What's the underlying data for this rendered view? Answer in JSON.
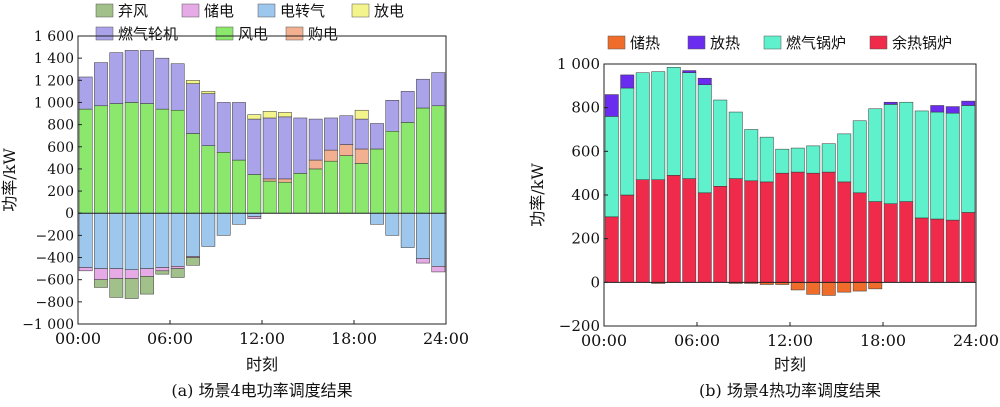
{
  "chart_data": [
    {
      "type": "bar",
      "stacked": true,
      "caption": "(a) 场景4电功率调度结果",
      "xlabel": "时刻",
      "ylabel": "功率/kW",
      "x_ticks": [
        "00:00",
        "06:00",
        "12:00",
        "18:00",
        "24:00"
      ],
      "y_ticks": [
        "1 600",
        "1 400",
        "1 200",
        "1 000",
        "800",
        "600",
        "400",
        "200",
        "0",
        "−200",
        "−400",
        "−600",
        "−800",
        "−1 000"
      ],
      "ylim": [
        -1000,
        1600
      ],
      "hours": [
        0,
        1,
        2,
        3,
        4,
        5,
        6,
        7,
        8,
        9,
        10,
        11,
        12,
        13,
        14,
        15,
        16,
        17,
        18,
        19,
        20,
        21,
        22,
        23
      ],
      "legend": [
        "弃风",
        "储电",
        "电转气",
        "放电",
        "燃气轮机",
        "风电",
        "购电"
      ],
      "series": [
        {
          "name": "风电",
          "color": "#8ce86d",
          "values": [
            940,
            970,
            990,
            1000,
            990,
            940,
            930,
            720,
            610,
            550,
            480,
            350,
            290,
            280,
            360,
            400,
            470,
            520,
            450,
            580,
            740,
            820,
            950,
            970
          ]
        },
        {
          "name": "购电",
          "color": "#f2b090",
          "values": [
            0,
            0,
            0,
            0,
            0,
            0,
            0,
            0,
            0,
            0,
            0,
            0,
            20,
            30,
            0,
            80,
            100,
            100,
            130,
            0,
            0,
            0,
            0,
            0
          ]
        },
        {
          "name": "燃气轮机",
          "color": "#aba3ea",
          "values": [
            290,
            390,
            460,
            470,
            480,
            460,
            420,
            450,
            470,
            450,
            520,
            500,
            550,
            560,
            500,
            370,
            290,
            260,
            270,
            230,
            280,
            280,
            260,
            300
          ]
        },
        {
          "name": "放电",
          "color": "#f3f58c",
          "values": [
            0,
            0,
            0,
            0,
            0,
            0,
            0,
            30,
            20,
            0,
            0,
            40,
            60,
            40,
            0,
            0,
            0,
            0,
            80,
            0,
            0,
            0,
            0,
            0
          ]
        },
        {
          "name": "电转气",
          "color": "#9ec7ee",
          "values": [
            -490,
            -500,
            -500,
            -510,
            -500,
            -490,
            -480,
            -390,
            -300,
            -200,
            -100,
            -30,
            0,
            0,
            0,
            0,
            0,
            0,
            0,
            -100,
            -200,
            -310,
            -410,
            -480
          ]
        },
        {
          "name": "储电",
          "color": "#e6aae6",
          "values": [
            -30,
            -100,
            -90,
            -80,
            -70,
            -30,
            -20,
            -10,
            0,
            0,
            0,
            -20,
            0,
            0,
            0,
            0,
            0,
            0,
            0,
            0,
            0,
            0,
            -40,
            -50
          ]
        },
        {
          "name": "弃风",
          "color": "#a2c08a",
          "values": [
            0,
            -70,
            -170,
            -180,
            -160,
            -30,
            -80,
            -70,
            0,
            0,
            0,
            0,
            0,
            0,
            0,
            0,
            0,
            0,
            0,
            0,
            0,
            0,
            0,
            0
          ]
        }
      ]
    },
    {
      "type": "bar",
      "stacked": true,
      "caption": "(b) 场景4热功率调度结果",
      "xlabel": "时刻",
      "ylabel": "功率/kW",
      "x_ticks": [
        "00:00",
        "06:00",
        "12:00",
        "18:00",
        "24:00"
      ],
      "y_ticks": [
        "1 000",
        "800",
        "600",
        "400",
        "200",
        "0",
        "−200"
      ],
      "ylim": [
        -200,
        1000
      ],
      "hours": [
        0,
        1,
        2,
        3,
        4,
        5,
        6,
        7,
        8,
        9,
        10,
        11,
        12,
        13,
        14,
        15,
        16,
        17,
        18,
        19,
        20,
        21,
        22,
        23
      ],
      "legend": [
        "储热",
        "放热",
        "燃气锅炉",
        "余热锅炉"
      ],
      "series": [
        {
          "name": "余热锅炉",
          "color": "#ef2a4a",
          "values": [
            300,
            400,
            470,
            470,
            490,
            475,
            410,
            440,
            475,
            465,
            460,
            500,
            505,
            500,
            505,
            460,
            410,
            370,
            360,
            370,
            295,
            290,
            285,
            320
          ]
        },
        {
          "name": "燃气锅炉",
          "color": "#5ff0cc",
          "values": [
            460,
            490,
            490,
            495,
            495,
            485,
            495,
            395,
            305,
            235,
            205,
            110,
            110,
            125,
            130,
            220,
            330,
            425,
            455,
            455,
            490,
            490,
            490,
            490
          ]
        },
        {
          "name": "放热",
          "color": "#6a2df0",
          "values": [
            100,
            60,
            0,
            0,
            0,
            10,
            30,
            0,
            0,
            0,
            0,
            0,
            0,
            0,
            0,
            0,
            0,
            0,
            10,
            0,
            0,
            30,
            30,
            20
          ]
        },
        {
          "name": "储热",
          "color": "#f06c2a",
          "values": [
            0,
            0,
            0,
            -5,
            0,
            0,
            0,
            0,
            -5,
            -5,
            -10,
            -10,
            -35,
            -55,
            -60,
            -45,
            -40,
            -30,
            0,
            0,
            0,
            0,
            0,
            0
          ]
        }
      ]
    }
  ]
}
